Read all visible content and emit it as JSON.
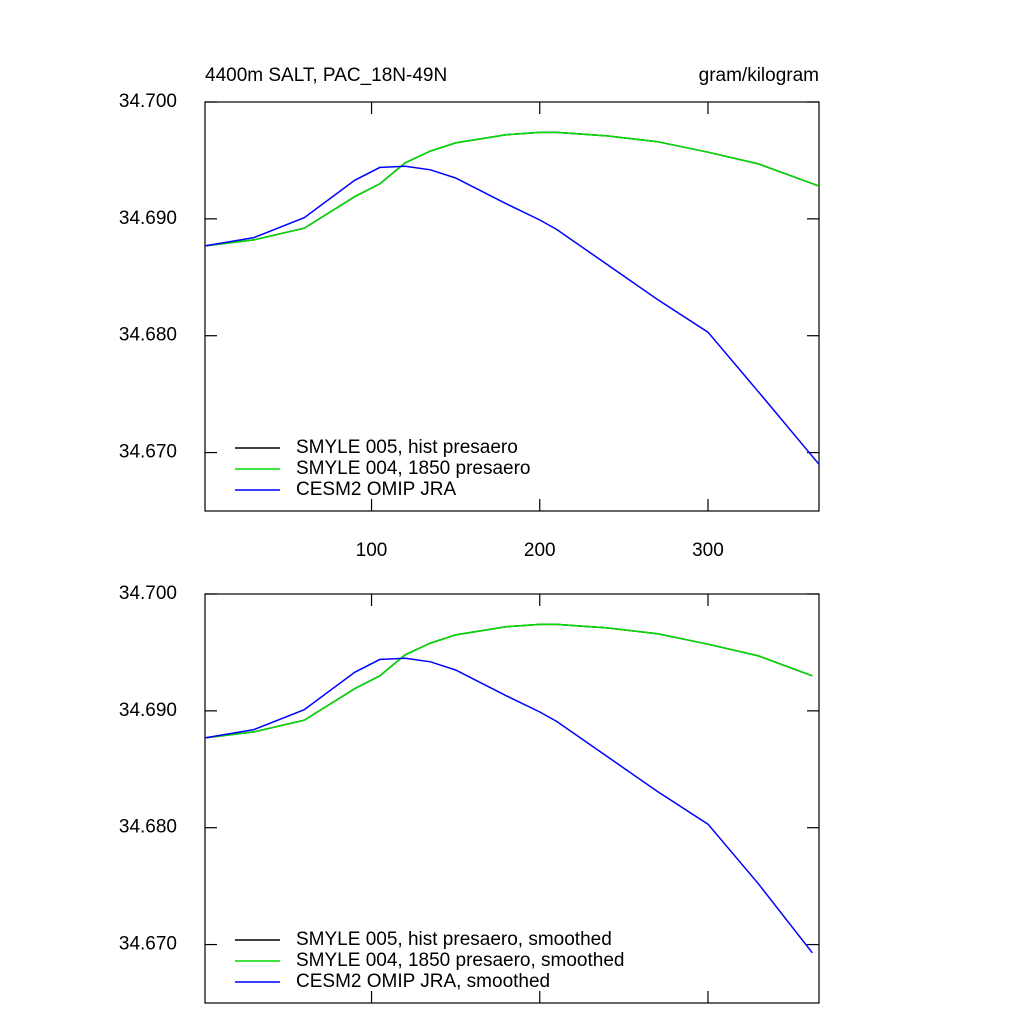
{
  "chart_data": [
    {
      "type": "line",
      "title": "4400m SALT, PAC_18N-49N",
      "units": "gram/kilogram",
      "x": [
        1,
        30,
        60,
        90,
        105,
        120,
        135,
        150,
        180,
        200,
        210,
        240,
        270,
        300,
        330,
        366
      ],
      "series": [
        {
          "name": "SMYLE 005, hist presaero",
          "color": "#000000",
          "values": [
            34.68769,
            34.6882,
            34.6892,
            34.6919,
            34.693,
            34.6948,
            34.6958,
            34.6965,
            34.6972,
            34.6974,
            34.6974,
            34.6971,
            34.6966,
            34.6957,
            34.6947,
            34.6928
          ]
        },
        {
          "name": "SMYLE 004, 1850 presaero",
          "color": "#00dd00",
          "values": [
            34.68769,
            34.6882,
            34.6892,
            34.6919,
            34.693,
            34.6948,
            34.6958,
            34.6965,
            34.6972,
            34.6974,
            34.6974,
            34.6971,
            34.6966,
            34.6957,
            34.6947,
            34.6928
          ]
        },
        {
          "name": "CESM2 OMIP JRA",
          "color": "#0000ff",
          "values": [
            34.68769,
            34.6884,
            34.6901,
            34.6933,
            34.6944,
            34.6945,
            34.6942,
            34.6935,
            34.6913,
            34.6899,
            34.6891,
            34.6861,
            34.6831,
            34.6803,
            34.6752,
            34.669
          ]
        }
      ],
      "xlim": [
        1,
        366
      ],
      "ylim": [
        34.665,
        34.7
      ],
      "xticks": [
        100,
        200,
        300
      ],
      "show_xtick_labels": true,
      "yticks": [
        {
          "value": 34.67,
          "label": "34.670"
        },
        {
          "value": 34.68,
          "label": "34.680"
        },
        {
          "value": 34.69,
          "label": "34.690"
        },
        {
          "value": 34.7,
          "label": "34.700"
        }
      ],
      "legend": "lower left"
    },
    {
      "type": "line",
      "x": [
        1,
        30,
        60,
        90,
        105,
        120,
        135,
        150,
        180,
        200,
        210,
        240,
        270,
        300,
        330,
        362
      ],
      "series": [
        {
          "name": "SMYLE 005, hist presaero, smoothed",
          "color": "#000000",
          "values": [
            34.68769,
            34.6882,
            34.6892,
            34.6919,
            34.693,
            34.6948,
            34.6958,
            34.6965,
            34.6972,
            34.6974,
            34.6974,
            34.6971,
            34.6966,
            34.6957,
            34.6947,
            34.693
          ]
        },
        {
          "name": "SMYLE 004, 1850 presaero, smoothed",
          "color": "#00dd00",
          "values": [
            34.68769,
            34.6882,
            34.6892,
            34.6919,
            34.693,
            34.6948,
            34.6958,
            34.6965,
            34.6972,
            34.6974,
            34.6974,
            34.6971,
            34.6966,
            34.6957,
            34.6947,
            34.693
          ]
        },
        {
          "name": "CESM2 OMIP JRA, smoothed",
          "color": "#0000ff",
          "values": [
            34.68769,
            34.6884,
            34.6901,
            34.6933,
            34.6944,
            34.6945,
            34.6942,
            34.6935,
            34.6913,
            34.6899,
            34.6891,
            34.6861,
            34.6831,
            34.6803,
            34.6752,
            34.6693
          ]
        }
      ],
      "xlim": [
        1,
        366
      ],
      "ylim": [
        34.665,
        34.7
      ],
      "xticks": [
        100,
        200,
        300
      ],
      "show_xtick_labels": false,
      "yticks": [
        {
          "value": 34.67,
          "label": "34.670"
        },
        {
          "value": 34.68,
          "label": "34.680"
        },
        {
          "value": 34.69,
          "label": "34.690"
        },
        {
          "value": 34.7,
          "label": "34.700"
        }
      ],
      "legend": "lower left"
    }
  ]
}
